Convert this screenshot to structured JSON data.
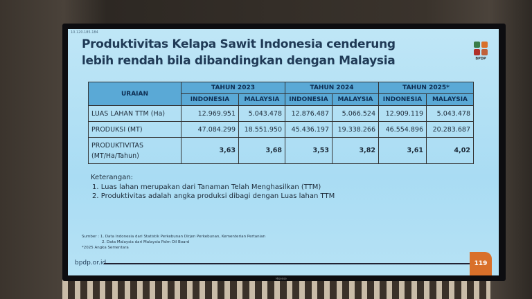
{
  "slide": {
    "ip_label": "10.120.185.184",
    "title_line1": "Produktivitas Kelapa Sawit Indonesia cenderung",
    "title_line2": "lebih rendah bila dibandingkan dengan Malaysia",
    "logo_text": "BPDP",
    "logo_colors": [
      "#3a7d4a",
      "#d9702a",
      "#b0302a",
      "#c0603a"
    ],
    "table": {
      "header_uraian": "URAIAN",
      "years": [
        "TAHUN 2023",
        "TAHUN 2024",
        "TAHUN 2025*"
      ],
      "countries": [
        "INDONESIA",
        "MALAYSIA",
        "INDONESIA",
        "MALAYSIA",
        "INDONESIA",
        "MALAYSIA"
      ],
      "rows": [
        {
          "label": "LUAS LAHAN TTM (Ha)",
          "values": [
            "12.969.951",
            "5.043.478",
            "12.876.487",
            "5.066.524",
            "12.909.119",
            "5.043.478"
          ]
        },
        {
          "label": "PRODUKSI (MT)",
          "values": [
            "47.084.299",
            "18.551.950",
            "45.436.197",
            "19.338.266",
            "46.554.896",
            "20.283.687"
          ]
        },
        {
          "label_line1": "PRODUKTIVITAS",
          "label_line2": "(MT/Ha/Tahun)",
          "values": [
            "3,63",
            "3,68",
            "3,53",
            "3,82",
            "3,61",
            "4,02"
          ]
        }
      ]
    },
    "notes": {
      "heading": "Keterangan:",
      "items": [
        "1.  Luas lahan merupakan dari Tanaman Telah Menghasilkan (TTM)",
        "2.  Produktivitas adalah angka produksi dibagi dengan Luas lahan TTM"
      ]
    },
    "sources": {
      "line1": "Sumber : 1. Data Indonesia dari Statistik Perkebunan Dirjen Perkebunan, Kementerian Pertanian",
      "line2": "2. Data Malaysia dari Malaysia Palm Oil Board",
      "line3": "*2025 Angka Sementara"
    },
    "footer_url": "bpdp.or.id",
    "page_number": "119",
    "accent_color": "#d9702a",
    "header_color": "#5aa9d6"
  },
  "monitor_brand": "Hisense"
}
